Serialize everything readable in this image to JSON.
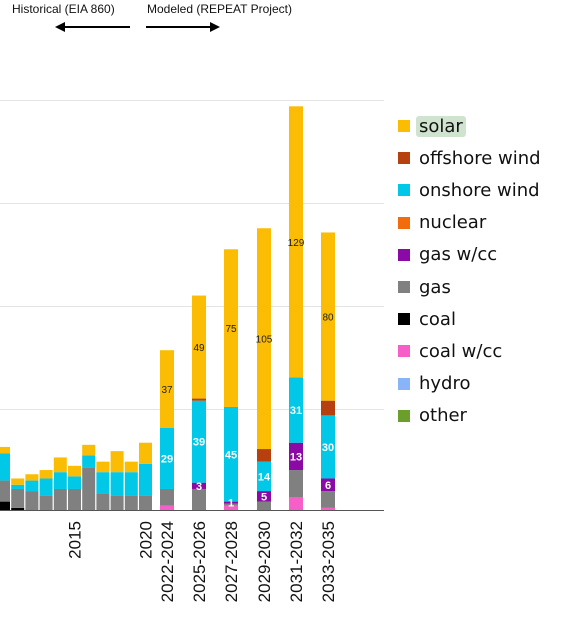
{
  "header": {
    "historical_label": "Historical (EIA 860)",
    "modeled_label": "Modeled (REPEAT Project)"
  },
  "legend": [
    {
      "name": "solar",
      "color": "#FBBC04",
      "highlight": true
    },
    {
      "name": "offshore wind",
      "color": "#B7410E"
    },
    {
      "name": "onshore wind",
      "color": "#00C8E6"
    },
    {
      "name": "nuclear",
      "color": "#F26C0E"
    },
    {
      "name": "gas w/cc",
      "color": "#8B0AA5"
    },
    {
      "name": "gas",
      "color": "#808080"
    },
    {
      "name": "coal",
      "color": "#000000"
    },
    {
      "name": "coal w/cc",
      "color": "#F55FC7"
    },
    {
      "name": "hydro",
      "color": "#8AB4F8"
    },
    {
      "name": "other",
      "color": "#6B9E2B"
    }
  ],
  "chart_data": {
    "type": "bar",
    "stacked": true,
    "grid": true,
    "ylim": [
      0,
      195
    ],
    "categories": [
      "",
      "",
      "",
      "",
      "",
      "2015",
      "",
      "",
      "",
      "",
      "2020",
      "2022-2024",
      "2025-2026",
      "2027-2028",
      "2029-2030",
      "2031-2032",
      "2033-2035"
    ],
    "series": [
      {
        "name": "coal w/cc",
        "values": [
          0,
          0,
          0,
          0,
          0,
          0,
          0,
          0,
          0,
          0,
          0,
          2,
          0,
          2,
          0,
          6,
          1
        ]
      },
      {
        "name": "coal",
        "values": [
          4,
          1,
          0,
          0,
          0,
          0,
          0,
          0,
          0,
          0,
          0,
          0,
          0,
          0,
          0,
          0,
          0
        ]
      },
      {
        "name": "gas",
        "values": [
          10,
          9,
          9,
          7,
          10,
          10,
          20,
          8,
          7,
          7,
          7,
          8,
          10,
          1,
          4,
          13,
          8
        ]
      },
      {
        "name": "gas w/cc",
        "values": [
          0,
          0,
          0,
          0,
          0,
          0,
          0,
          0,
          0,
          0,
          0,
          0,
          3,
          1,
          5,
          13,
          6
        ]
      },
      {
        "name": "onshore wind",
        "values": [
          13,
          2,
          5,
          8,
          8,
          6,
          6,
          10,
          11,
          11,
          15,
          29,
          39,
          45,
          14,
          31,
          30
        ]
      },
      {
        "name": "offshore wind",
        "values": [
          0,
          0,
          0,
          0,
          0,
          0,
          0,
          0,
          0,
          0,
          0,
          0,
          1,
          0,
          6,
          0,
          7
        ]
      },
      {
        "name": "solar",
        "values": [
          3,
          3,
          3,
          4,
          7,
          5,
          5,
          5,
          10,
          5,
          10,
          37,
          49,
          75,
          105,
          129,
          80
        ]
      }
    ],
    "data_labels": [
      {
        "category": "2022-2024",
        "series": "onshore wind",
        "text": "29"
      },
      {
        "category": "2022-2024",
        "series": "solar",
        "text": "37"
      },
      {
        "category": "2025-2026",
        "series": "gas w/cc",
        "text": "3"
      },
      {
        "category": "2025-2026",
        "series": "onshore wind",
        "text": "39"
      },
      {
        "category": "2025-2026",
        "series": "solar",
        "text": "49"
      },
      {
        "category": "2027-2028",
        "series": "gas w/cc",
        "text": "1"
      },
      {
        "category": "2027-2028",
        "series": "onshore wind",
        "text": "45"
      },
      {
        "category": "2027-2028",
        "series": "solar",
        "text": "75"
      },
      {
        "category": "2029-2030",
        "series": "gas w/cc",
        "text": "5"
      },
      {
        "category": "2029-2030",
        "series": "onshore wind",
        "text": "14"
      },
      {
        "category": "2029-2030",
        "series": "solar",
        "text": "105"
      },
      {
        "category": "2031-2032",
        "series": "gas w/cc",
        "text": "13"
      },
      {
        "category": "2031-2032",
        "series": "onshore wind",
        "text": "31"
      },
      {
        "category": "2031-2032",
        "series": "solar",
        "text": "129"
      },
      {
        "category": "2033-2035",
        "series": "gas w/cc",
        "text": "6"
      },
      {
        "category": "2033-2035",
        "series": "onshore wind",
        "text": "30"
      },
      {
        "category": "2033-2035",
        "series": "solar",
        "text": "80"
      }
    ]
  }
}
